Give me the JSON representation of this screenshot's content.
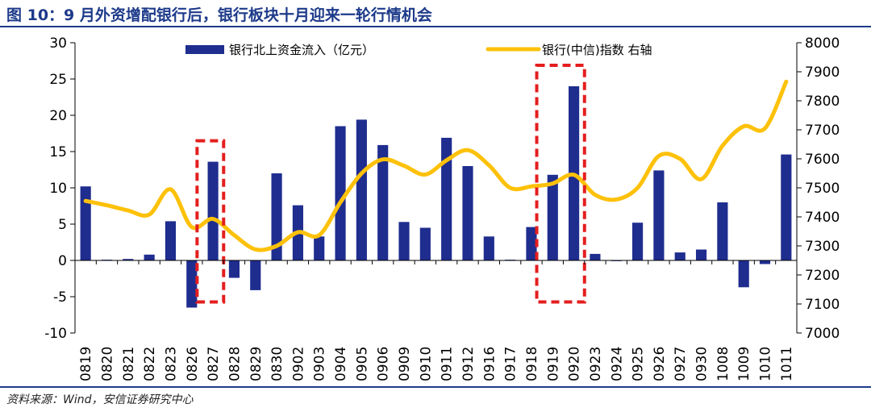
{
  "title": "图 10：9 月外资增配银行后，银行板块十月迎来一轮行情机会",
  "source": "资料来源：Wind，安信证券研究中心",
  "colors": {
    "bar": "#1f2d8f",
    "line": "#fdc10a",
    "highlight": "#e41e1e",
    "accent": "#1d3a8a"
  },
  "chart_data": {
    "type": "bar",
    "categories": [
      "0819",
      "0820",
      "0821",
      "0822",
      "0823",
      "0826",
      "0827",
      "0828",
      "0829",
      "0830",
      "0902",
      "0903",
      "0904",
      "0905",
      "0906",
      "0909",
      "0910",
      "0911",
      "0912",
      "0916",
      "0917",
      "0918",
      "0919",
      "0920",
      "0923",
      "0924",
      "0925",
      "0926",
      "0927",
      "0930",
      "1008",
      "1009",
      "1010",
      "1011"
    ],
    "series": [
      {
        "name": "银行北上资金流入（亿元）",
        "type": "bar",
        "axis": "left",
        "values": [
          10.2,
          0.1,
          0.2,
          0.8,
          5.4,
          -6.5,
          13.6,
          -2.4,
          -4.1,
          12.0,
          7.6,
          3.3,
          18.5,
          19.4,
          15.9,
          5.3,
          4.5,
          16.9,
          13.0,
          3.3,
          0.1,
          4.6,
          11.8,
          24.0,
          0.9,
          -0.1,
          5.2,
          12.4,
          1.1,
          1.5,
          8.0,
          -3.7,
          -0.5,
          14.6
        ]
      },
      {
        "name": "银行(中信)指数 右轴",
        "type": "line",
        "axis": "right",
        "values": [
          7455,
          7440,
          7422,
          7408,
          7495,
          7365,
          7393,
          7337,
          7288,
          7300,
          7347,
          7337,
          7450,
          7550,
          7598,
          7576,
          7546,
          7595,
          7630,
          7578,
          7500,
          7505,
          7515,
          7545,
          7476,
          7460,
          7500,
          7610,
          7600,
          7530,
          7645,
          7712,
          7705,
          7866
        ]
      }
    ],
    "y_left": {
      "lim": [
        -10,
        30
      ],
      "ticks": [
        -10,
        -5,
        0,
        5,
        10,
        15,
        20,
        25,
        30
      ]
    },
    "y_right": {
      "lim": [
        7000,
        8000
      ],
      "ticks": [
        7000,
        7100,
        7200,
        7300,
        7400,
        7500,
        7600,
        7700,
        7800,
        7900,
        8000
      ]
    },
    "highlights": [
      {
        "from": "0827",
        "to": "0827"
      },
      {
        "from": "0919",
        "to": "0920"
      }
    ],
    "legend_position": "top"
  }
}
